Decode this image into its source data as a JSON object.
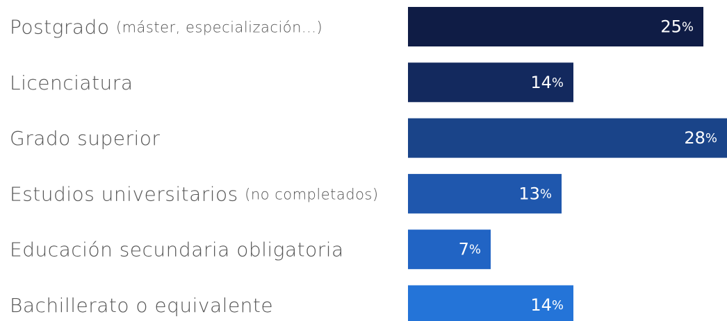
{
  "chart_data": {
    "type": "barh",
    "categories": [
      "Postgrado (máster, especialización...)",
      "Licenciatura",
      "Grado superior",
      "Estudios universitarios (no completados)",
      "Educación secundaria obligatoria",
      "Bachillerato o equivalente"
    ],
    "values": [
      25,
      14,
      28,
      13,
      7,
      14
    ],
    "value_labels": [
      "25%",
      "14%",
      "28%",
      "13%",
      "7%",
      "14%"
    ],
    "colors": [
      "#0f1c45",
      "#13295e",
      "#1a4489",
      "#1f57ad",
      "#2164c4",
      "#2474d8"
    ]
  }
}
